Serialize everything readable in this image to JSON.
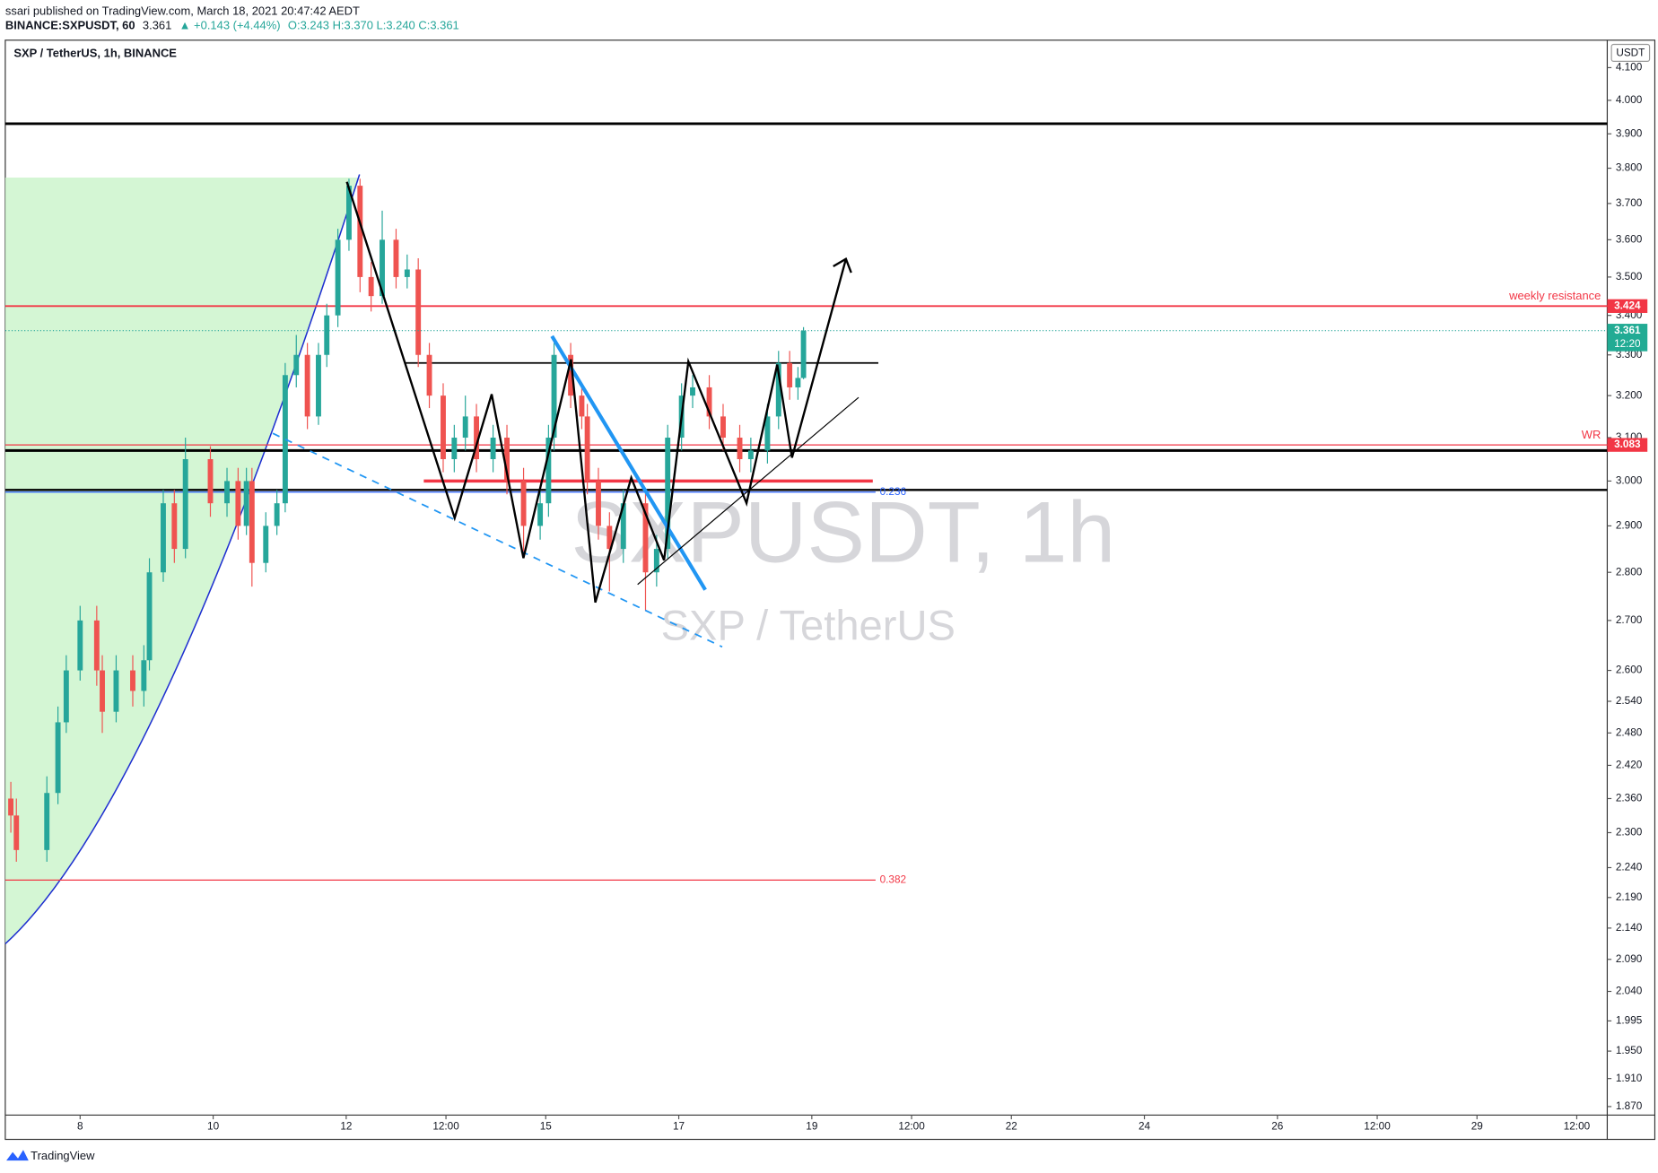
{
  "header": {
    "publisher": "ssari published on TradingView.com, March 18, 2021 20:47:42 AEDT",
    "symbol": "BINANCE:SXPUSDT, 60",
    "last": "3.361",
    "change": "▲ +0.143 (+4.44%)",
    "ohlc": "O:3.243 H:3.370 L:3.240 C:3.361"
  },
  "footer": {
    "brand": "TradingView"
  },
  "chart_data": {
    "type": "candlestick",
    "title": "SXP / TetherUS, 1h, BINANCE",
    "watermark": "SXPUSDT, 1h",
    "watermark_sub": "SXP / TetherUS",
    "currency": "USDT",
    "log_scale": true,
    "grid": false,
    "up_color": "#26a69a",
    "down_color": "#ef5350",
    "x": [
      -25,
      -23,
      -12,
      -8,
      -5,
      0,
      6,
      8,
      13,
      19,
      23,
      25,
      30,
      34,
      38,
      47,
      53,
      57,
      60,
      62,
      67,
      71,
      74,
      78,
      82,
      86,
      89,
      93,
      97,
      101,
      105,
      109,
      114,
      118,
      122,
      126,
      131,
      135,
      139,
      143,
      149,
      154,
      160,
      166,
      169,
      171,
      177,
      181,
      183,
      187,
      191,
      196,
      204,
      208,
      212,
      217,
      221,
      227,
      232,
      238,
      242,
      248,
      252,
      256,
      259,
      261
    ],
    "open": [
      2.36,
      2.33,
      2.27,
      2.37,
      2.5,
      2.6,
      2.7,
      2.6,
      2.52,
      2.6,
      2.56,
      2.62,
      2.8,
      2.95,
      2.85,
      3.05,
      2.95,
      3.0,
      2.9,
      3.0,
      2.82,
      2.9,
      2.95,
      3.25,
      3.3,
      3.15,
      3.3,
      3.4,
      3.6,
      3.75,
      3.5,
      3.45,
      3.6,
      3.5,
      3.52,
      3.3,
      3.2,
      3.05,
      3.1,
      3.15,
      3.05,
      3.1,
      3.0,
      2.9,
      2.95,
      3.1,
      3.3,
      3.2,
      3.15,
      3.0,
      2.9,
      2.85,
      2.95,
      2.8,
      2.85,
      3.1,
      3.2,
      3.22,
      3.15,
      3.1,
      3.05,
      3.07,
      3.15,
      3.28,
      3.22,
      3.243
    ],
    "high": [
      2.39,
      2.36,
      2.4,
      2.53,
      2.63,
      2.73,
      2.73,
      2.63,
      2.63,
      2.63,
      2.65,
      2.83,
      2.98,
      2.98,
      3.1,
      3.08,
      3.03,
      3.03,
      3.03,
      3.03,
      2.93,
      2.98,
      3.28,
      3.35,
      3.33,
      3.33,
      3.43,
      3.63,
      3.77,
      3.77,
      3.54,
      3.68,
      3.63,
      3.56,
      3.55,
      3.33,
      3.23,
      3.13,
      3.2,
      3.18,
      3.13,
      3.13,
      3.03,
      2.98,
      3.13,
      3.33,
      3.33,
      3.23,
      3.18,
      3.03,
      2.93,
      2.98,
      2.98,
      2.88,
      3.13,
      3.23,
      3.25,
      3.25,
      3.18,
      3.13,
      3.1,
      3.18,
      3.31,
      3.31,
      3.27,
      3.37
    ],
    "low": [
      2.3,
      2.25,
      2.25,
      2.35,
      2.48,
      2.58,
      2.57,
      2.48,
      2.5,
      2.53,
      2.53,
      2.6,
      2.78,
      2.82,
      2.83,
      2.92,
      2.92,
      2.87,
      2.88,
      2.77,
      2.8,
      2.88,
      2.93,
      3.22,
      3.12,
      3.13,
      3.27,
      3.37,
      3.57,
      3.46,
      3.41,
      3.43,
      3.47,
      3.47,
      3.27,
      3.17,
      3.02,
      3.02,
      3.07,
      3.02,
      3.02,
      2.97,
      2.84,
      2.87,
      2.92,
      3.07,
      3.17,
      3.12,
      2.97,
      2.87,
      2.76,
      2.82,
      2.72,
      2.77,
      2.83,
      3.07,
      3.17,
      3.12,
      3.07,
      3.02,
      3.02,
      3.04,
      3.12,
      3.19,
      3.19,
      3.24
    ],
    "close": [
      2.33,
      2.27,
      2.37,
      2.5,
      2.6,
      2.7,
      2.6,
      2.52,
      2.6,
      2.56,
      2.62,
      2.8,
      2.95,
      2.85,
      3.05,
      2.95,
      3.0,
      2.9,
      3.0,
      2.82,
      2.9,
      2.95,
      3.25,
      3.3,
      3.15,
      3.3,
      3.4,
      3.6,
      3.75,
      3.5,
      3.45,
      3.6,
      3.5,
      3.52,
      3.3,
      3.2,
      3.05,
      3.1,
      3.15,
      3.05,
      3.1,
      3.0,
      2.9,
      2.95,
      3.1,
      3.3,
      3.2,
      3.15,
      3.0,
      2.9,
      2.85,
      2.95,
      2.8,
      2.85,
      3.1,
      3.2,
      3.22,
      3.15,
      3.1,
      3.05,
      3.07,
      3.15,
      3.28,
      3.22,
      3.243,
      3.361
    ],
    "xlim": [
      -27,
      551
    ],
    "xticks": [
      {
        "value": 0,
        "label": "8"
      },
      {
        "value": 48,
        "label": "10"
      },
      {
        "value": 96,
        "label": "12"
      },
      {
        "value": 132,
        "label": "12:00"
      },
      {
        "value": 168,
        "label": "15"
      },
      {
        "value": 216,
        "label": "17"
      },
      {
        "value": 264,
        "label": "19"
      },
      {
        "value": 300,
        "label": "12:00"
      },
      {
        "value": 336,
        "label": "22"
      },
      {
        "value": 384,
        "label": "24"
      },
      {
        "value": 432,
        "label": "26"
      },
      {
        "value": 468,
        "label": "12:00"
      },
      {
        "value": 504,
        "label": "29"
      },
      {
        "value": 540,
        "label": "12:00"
      }
    ],
    "ylim": [
      1.858,
      4.186
    ],
    "yticks": [
      {
        "value": 4.1,
        "label": "4.100"
      },
      {
        "value": 4.0,
        "label": "4.000"
      },
      {
        "value": 3.9,
        "label": "3.900"
      },
      {
        "value": 3.8,
        "label": "3.800"
      },
      {
        "value": 3.7,
        "label": "3.700"
      },
      {
        "value": 3.6,
        "label": "3.600"
      },
      {
        "value": 3.5,
        "label": "3.500"
      },
      {
        "value": 3.4,
        "label": "3.400"
      },
      {
        "value": 3.3,
        "label": "3.300"
      },
      {
        "value": 3.2,
        "label": "3.200"
      },
      {
        "value": 3.1,
        "label": "3.100"
      },
      {
        "value": 3.0,
        "label": "3.000"
      },
      {
        "value": 2.9,
        "label": "2.900"
      },
      {
        "value": 2.8,
        "label": "2.800"
      },
      {
        "value": 2.7,
        "label": "2.700"
      },
      {
        "value": 2.6,
        "label": "2.600"
      },
      {
        "value": 2.54,
        "label": "2.540"
      },
      {
        "value": 2.48,
        "label": "2.480"
      },
      {
        "value": 2.42,
        "label": "2.420"
      },
      {
        "value": 2.36,
        "label": "2.360"
      },
      {
        "value": 2.3,
        "label": "2.300"
      },
      {
        "value": 2.24,
        "label": "2.240"
      },
      {
        "value": 2.19,
        "label": "2.190"
      },
      {
        "value": 2.14,
        "label": "2.140"
      },
      {
        "value": 2.09,
        "label": "2.090"
      },
      {
        "value": 2.04,
        "label": "2.040"
      },
      {
        "value": 1.995,
        "label": "1.995"
      },
      {
        "value": 1.95,
        "label": "1.950"
      },
      {
        "value": 1.91,
        "label": "1.910"
      },
      {
        "value": 1.87,
        "label": "1.870"
      }
    ],
    "levels": [
      {
        "value": 3.93,
        "color": "#000000",
        "width": 2.5
      },
      {
        "value": 3.424,
        "color": "#f23645",
        "width": 1.5
      },
      {
        "value": 3.083,
        "color": "#f23645",
        "width": 1
      },
      {
        "value": 3.07,
        "color": "#000000",
        "width": 2.5
      },
      {
        "value": 2.98,
        "color": "#000000",
        "width": 2
      },
      {
        "value": 3.28,
        "color": "#000000",
        "width": 1.5,
        "xrange": [
          117,
          288
        ]
      },
      {
        "value": 3.0,
        "color": "#f23645",
        "width": 3,
        "xrange": [
          124,
          286
        ]
      }
    ],
    "fib": [
      {
        "label": "0.236",
        "value": 2.975,
        "color": "#2962ff",
        "xrange": [
          -27,
          287
        ]
      },
      {
        "label": "0.382",
        "value": 2.219,
        "color": "#f23645",
        "xrange": [
          -27,
          287
        ]
      }
    ],
    "annotations": [
      {
        "text": "weekly resistance",
        "value": 3.424,
        "color": "#f23645"
      },
      {
        "text": "WR",
        "value": 3.083,
        "color": "#f23645"
      }
    ],
    "price_labels": [
      {
        "value": 3.424,
        "label": "3.424",
        "color": "#f23645"
      },
      {
        "value": 3.361,
        "label": "3.361",
        "sub": "12:20",
        "color": "#22ab94"
      },
      {
        "value": 3.083,
        "label": "3.083",
        "color": "#f23645"
      }
    ]
  }
}
